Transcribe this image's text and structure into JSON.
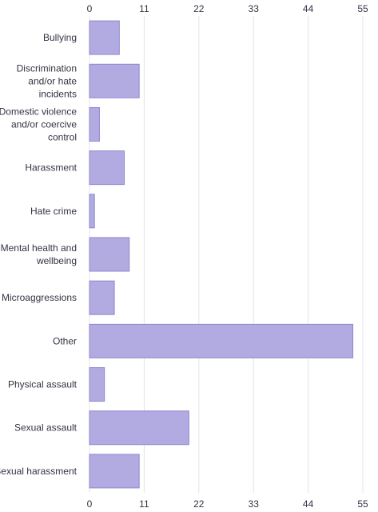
{
  "chart_data": {
    "type": "bar",
    "orientation": "horizontal",
    "categories": [
      "Bullying",
      "Discrimination and/or hate incidents",
      "Domestic violence and/or coercive control",
      "Harassment",
      "Hate crime",
      "Mental health and wellbeing",
      "Microaggressions",
      "Other",
      "Physical assault",
      "Sexual assault",
      "Sexual harassment"
    ],
    "category_lines": [
      [
        "Bullying"
      ],
      [
        "Discrimination",
        "and/or hate",
        "incidents"
      ],
      [
        "Domestic violence",
        "and/or coercive",
        "control"
      ],
      [
        "Harassment"
      ],
      [
        "Hate crime"
      ],
      [
        "Mental health and",
        "wellbeing"
      ],
      [
        "Microaggressions"
      ],
      [
        "Other"
      ],
      [
        "Physical assault"
      ],
      [
        "Sexual assault"
      ],
      [
        "Sexual harassment"
      ]
    ],
    "values": [
      6,
      10,
      2,
      7,
      1,
      8,
      5,
      53,
      3,
      20,
      10
    ],
    "xlim": [
      0,
      55
    ],
    "ticks": [
      "0",
      "11",
      "22",
      "33",
      "44",
      "55"
    ],
    "grid": true,
    "title": "",
    "xlabel": "",
    "ylabel": "",
    "bar_color": "#b1abe2",
    "bar_edge_color": "#8f87cf"
  }
}
